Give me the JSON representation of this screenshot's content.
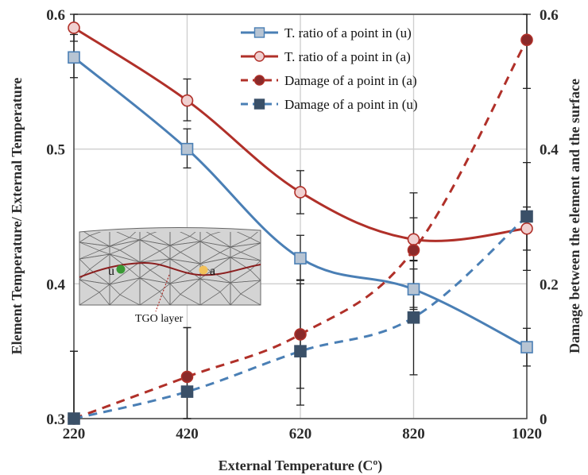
{
  "chart_data": {
    "type": "line",
    "x": [
      220,
      420,
      620,
      820,
      1020
    ],
    "xlabel": "External Temperature (Cº)",
    "ylabel_left": "Element Temperature/ External Temperature",
    "ylabel_right": "Damage between the element and the surface",
    "xlim": [
      220,
      1020
    ],
    "ylim_left": [
      0.3,
      0.6
    ],
    "ylim_right": [
      0,
      0.6
    ],
    "x_ticks": [
      "220",
      "420",
      "620",
      "820",
      "1020"
    ],
    "y_ticks_left": [
      "0.3",
      "0.4",
      "0.5",
      "0.6"
    ],
    "y_ticks_right": [
      "0",
      "0.2",
      "0.4",
      "0.6"
    ],
    "grid": true,
    "legend_position": "top-right",
    "series": [
      {
        "name": "T. ratio of a point in (u)",
        "axis": "left",
        "marker": "square",
        "line": "solid",
        "color": "#4a7fb5",
        "values": [
          0.568,
          0.5,
          0.419,
          0.396,
          0.353
        ],
        "error_high": [
          0.585,
          0.515,
          0.436,
          0.411,
          0.367
        ],
        "error_low": [
          0.553,
          0.486,
          0.403,
          0.381,
          0.339
        ]
      },
      {
        "name": "T. ratio of a point in (a)",
        "axis": "left",
        "marker": "circle",
        "line": "solid",
        "color": "#b03029",
        "values": [
          0.59,
          0.536,
          0.468,
          0.433,
          0.441
        ],
        "error_high": [
          0.6,
          0.552,
          0.484,
          0.449,
          0.457
        ],
        "error_low": [
          0.58,
          0.521,
          0.452,
          0.417,
          0.425
        ]
      },
      {
        "name": "Damage of a point in (a)",
        "axis": "right",
        "marker": "circle",
        "line": "dashed",
        "color": "#b03029",
        "values": [
          0.0,
          0.062,
          0.125,
          0.25,
          0.562
        ],
        "error_high": [
          0.1,
          0.135,
          0.205,
          0.335,
          0.6
        ],
        "error_low": [
          0.0,
          0.0,
          0.045,
          0.165,
          0.49
        ]
      },
      {
        "name": "Damage of a point in (u)",
        "axis": "right",
        "marker": "square",
        "line": "dashed",
        "color": "#4a7fb5",
        "values": [
          0.0,
          0.04,
          0.1,
          0.15,
          0.3
        ],
        "error_high": [
          0.1,
          0.135,
          0.2,
          0.235,
          0.38
        ],
        "error_low": [
          0.0,
          0.0,
          0.02,
          0.065,
          0.22
        ]
      }
    ],
    "inset": {
      "label_u": "u",
      "label_a": "a",
      "caption": "TGO layer",
      "point_u_color": "#3a9a35",
      "point_a_color": "#f2c15a"
    }
  }
}
